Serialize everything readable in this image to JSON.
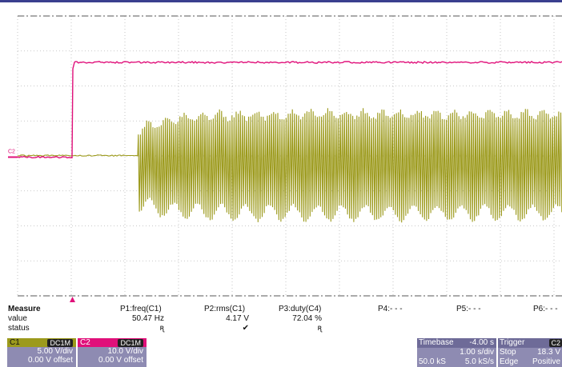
{
  "colors": {
    "c1": "#9c9a1c",
    "c2": "#e0107a",
    "panel": "#8e8bb2",
    "grid": "#b8b8b8"
  },
  "plot": {
    "c2_marker": "C2",
    "trigger_marker_icon": "triangle-up",
    "waveforms": [
      {
        "name": "C2",
        "description": "step",
        "level_before": 0.0,
        "level_after": 21.5,
        "step_time_div": 0.72
      },
      {
        "name": "C1",
        "description": "burst",
        "start_time_div": 2.25,
        "upper_div": 1.1,
        "lower_div": -1.6
      }
    ]
  },
  "measure": {
    "labels": [
      "Measure",
      "value",
      "status"
    ],
    "params": [
      {
        "name": "P1:freq(C1)",
        "value": "50.47 Hz",
        "status": "ꭆ"
      },
      {
        "name": "P2:rms(C1)",
        "value": "4.17 V",
        "status": "✔"
      },
      {
        "name": "P3:duty(C4)",
        "value": "72.04 %",
        "status": "ꭆ"
      },
      {
        "name": "P4:- - -",
        "value": "",
        "status": ""
      },
      {
        "name": "P5:- - -",
        "value": "",
        "status": ""
      },
      {
        "name": "P6:- - -",
        "value": "",
        "status": ""
      }
    ]
  },
  "channels": [
    {
      "id": "C1",
      "coupling": "DC1M",
      "scale": "5.00 V/div",
      "offset": "0.00 V offset"
    },
    {
      "id": "C2",
      "coupling": "DC1M",
      "scale": "10.0 V/div",
      "offset": "0.00 V offset"
    }
  ],
  "timebase": {
    "label": "Timebase",
    "delay": "-4.00 s",
    "samples": "50.0 kS",
    "per_div": "1.00 s/div",
    "rate": "5.0 kS/s"
  },
  "trigger": {
    "label": "Trigger",
    "source": "C2",
    "mode": "Stop",
    "level": "18.3 V",
    "type": "Edge",
    "slope": "Positive"
  }
}
